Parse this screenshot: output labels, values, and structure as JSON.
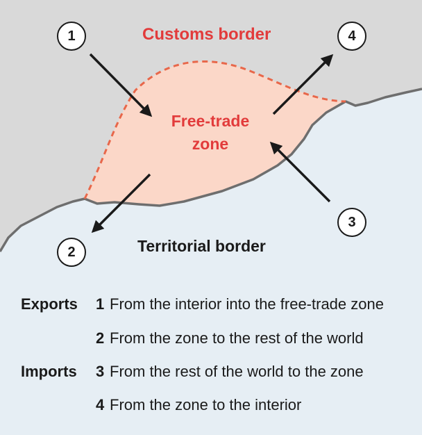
{
  "labels": {
    "customs_border": "Customs border",
    "free_trade_zone_line1": "Free-trade",
    "free_trade_zone_line2": "zone",
    "territorial_border": "Territorial border"
  },
  "markers": [
    "1",
    "2",
    "3",
    "4"
  ],
  "legend": [
    {
      "category": "Exports",
      "number": "1",
      "text": "From the interior into the free-trade zone"
    },
    {
      "category": "",
      "number": "2",
      "text": "From the zone to the rest of the world"
    },
    {
      "category": "Imports",
      "number": "3",
      "text": "From the rest of the world to the zone"
    },
    {
      "category": "",
      "number": "4",
      "text": "From the zone to the interior"
    }
  ],
  "colors": {
    "interior_land": "#d9d9d9",
    "sea": "#e6eef4",
    "zone_fill": "#fbd7c8",
    "customs_border_line": "#e8674a",
    "territorial_border_line": "#6e6e6e",
    "accent_red": "#e23b3b"
  }
}
